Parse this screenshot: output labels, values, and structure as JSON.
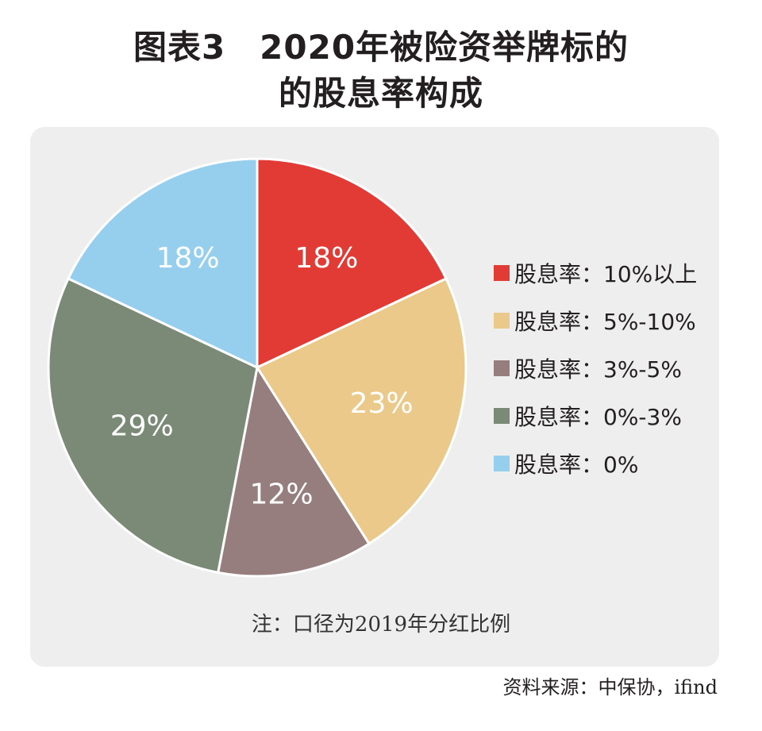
{
  "title": {
    "line1": "图表3　2020年被险资举牌标的",
    "line2": "的股息率构成"
  },
  "note": "注：口径为2019年分红比例",
  "source": "资料来源：中保协，ifind",
  "chart_data": {
    "type": "pie",
    "title": "图表3　2020年被险资举牌标的的股息率构成",
    "slices": [
      {
        "label": "股息率：10%以上",
        "value": 18,
        "display": "18%",
        "color": "#e23a35"
      },
      {
        "label": "股息率：5%-10%",
        "value": 23,
        "display": "23%",
        "color": "#ebc98a"
      },
      {
        "label": "股息率：3%-5%",
        "value": 12,
        "display": "12%",
        "color": "#967d7e"
      },
      {
        "label": "股息率：0%-3%",
        "value": 29,
        "display": "29%",
        "color": "#7b8a77"
      },
      {
        "label": "股息率：0%",
        "value": 18,
        "display": "18%",
        "color": "#96cfee"
      }
    ],
    "start_angle": "12 o'clock",
    "direction": "clockwise",
    "legend_position": "right"
  }
}
